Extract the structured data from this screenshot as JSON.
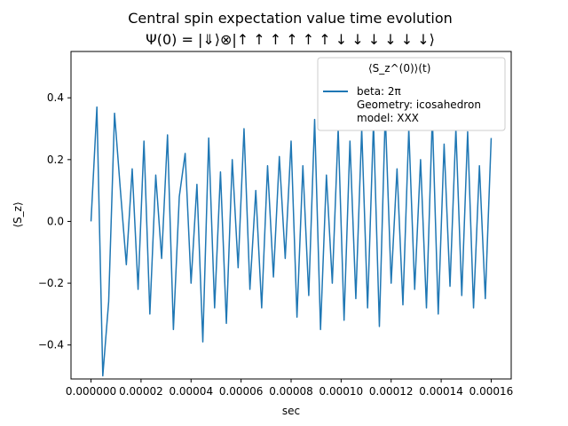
{
  "chart_data": {
    "type": "line",
    "title": "Central spin expectation value time evolution",
    "subtitle": "Ψ(0) = |⇓⟩⊗|↑ ↑ ↑ ↑ ↑ ↑ ↓ ↓ ↓ ↓ ↓ ↓⟩",
    "xlabel": "sec",
    "ylabel": "⟨S_z⟩",
    "xlim": [
      -8e-06,
      0.000168
    ],
    "ylim": [
      -0.51,
      0.55
    ],
    "xticks": [
      "0.000000",
      "0.00002",
      "0.00004",
      "0.00006",
      "0.00008",
      "0.00010",
      "0.00012",
      "0.00014",
      "0.00016"
    ],
    "yticks": [
      "−0.4",
      "−0.2",
      "0.0",
      "0.2",
      "0.4"
    ],
    "grid": false,
    "legend": {
      "placement": "top-right",
      "title": "⟨S_z^(0)⟩(t)",
      "entries": [
        "beta: 2π",
        "Geometry: icosahedron",
        "model: XXX"
      ]
    },
    "series": [
      {
        "color": "#1f77b4",
        "x_start": 0.0,
        "x_end": 0.00016,
        "y_range": [
          -0.5,
          0.37
        ],
        "noise_y": [
          0.0,
          0.37,
          -0.5,
          -0.26,
          0.35,
          0.1,
          -0.14,
          0.17,
          -0.22,
          0.26,
          -0.3,
          0.15,
          -0.12,
          0.28,
          -0.35,
          0.08,
          0.22,
          -0.2,
          0.12,
          -0.39,
          0.27,
          -0.28,
          0.16,
          -0.33,
          0.2,
          -0.15,
          0.3,
          -0.22,
          0.1,
          -0.28,
          0.18,
          -0.18,
          0.21,
          -0.12,
          0.26,
          -0.31,
          0.18,
          -0.24,
          0.33,
          -0.35,
          0.15,
          -0.2,
          0.3,
          -0.32,
          0.26,
          -0.25,
          0.3,
          -0.28,
          0.32,
          -0.34,
          0.35,
          -0.2,
          0.17,
          -0.27,
          0.3,
          -0.22,
          0.2,
          -0.28,
          0.34,
          -0.3,
          0.25,
          -0.21,
          0.3,
          -0.24,
          0.29,
          -0.28,
          0.18,
          -0.25,
          0.27
        ]
      }
    ]
  }
}
